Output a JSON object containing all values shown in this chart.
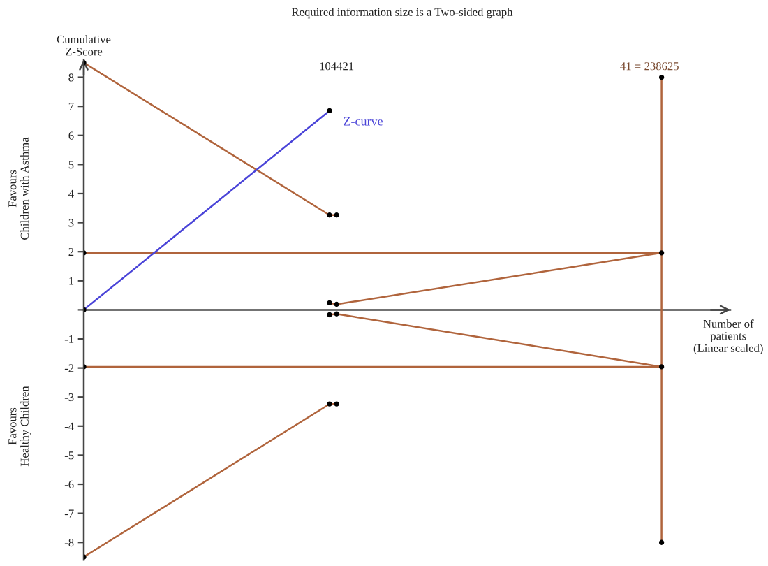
{
  "chart_data": {
    "type": "line",
    "title": "Required information size is a Two-sided graph",
    "ylabel": "Cumulative\nZ-Score",
    "xlabel": "Number of\npatients\n(Linear scaled)",
    "annotations": [
      "Favours\nChildren with Asthma",
      "Favours\nHealthy Children",
      "41 ="
    ],
    "xlim": [
      0,
      267000
    ],
    "xticks": [
      104421,
      238625
    ],
    "ylim": [
      -8.6,
      8.6
    ],
    "yticks": [
      8,
      7,
      6,
      5,
      4,
      3,
      2,
      1,
      {
        "value": 0,
        "label": null
      },
      -1,
      -2,
      -3,
      -4,
      -5,
      -6,
      -7,
      -8
    ],
    "series": [
      {
        "color": "#b0643c",
        "x": [
          0,
          101500,
          104421
        ],
        "values": [
          8.5,
          3.26,
          3.26
        ]
      },
      {
        "color": "#b0643c",
        "x": [
          0,
          101500,
          104421
        ],
        "values": [
          -8.5,
          -3.24,
          -3.24
        ]
      },
      {
        "color": "#b0643c",
        "x": [
          101500,
          104421,
          238625
        ],
        "values": [
          0.24,
          0.19,
          1.96
        ]
      },
      {
        "color": "#b0643c",
        "x": [
          101500,
          104421,
          238625
        ],
        "values": [
          -0.17,
          -0.14,
          -1.96
        ]
      },
      {
        "color": "#b0643c",
        "x": [
          0,
          238625
        ],
        "values": [
          1.96,
          1.96
        ]
      },
      {
        "color": "#b0643c",
        "x": [
          0,
          238625
        ],
        "values": [
          -1.96,
          -1.96
        ]
      },
      {
        "color": "#b0643c",
        "x": [
          238625,
          238625
        ],
        "values": [
          -8,
          8
        ]
      },
      {
        "name": "Z-curve",
        "color": "#4a44d8",
        "x": [
          0,
          101500
        ],
        "values": [
          0,
          6.85
        ]
      },
      {
        "type": "scatter",
        "color": "#000000",
        "marker": "circle",
        "x": [
          0,
          0,
          0,
          0,
          0,
          101500,
          104421,
          101500,
          101500,
          104421,
          101500,
          104421,
          101500,
          104421,
          238625,
          238625,
          238625,
          238625
        ],
        "values": [
          8.5,
          1.96,
          0,
          -1.96,
          -8.5,
          3.26,
          3.26,
          6.85,
          0.24,
          0.19,
          -0.17,
          -0.14,
          -3.24,
          -3.24,
          8,
          1.96,
          -1.96,
          -8
        ]
      }
    ]
  }
}
